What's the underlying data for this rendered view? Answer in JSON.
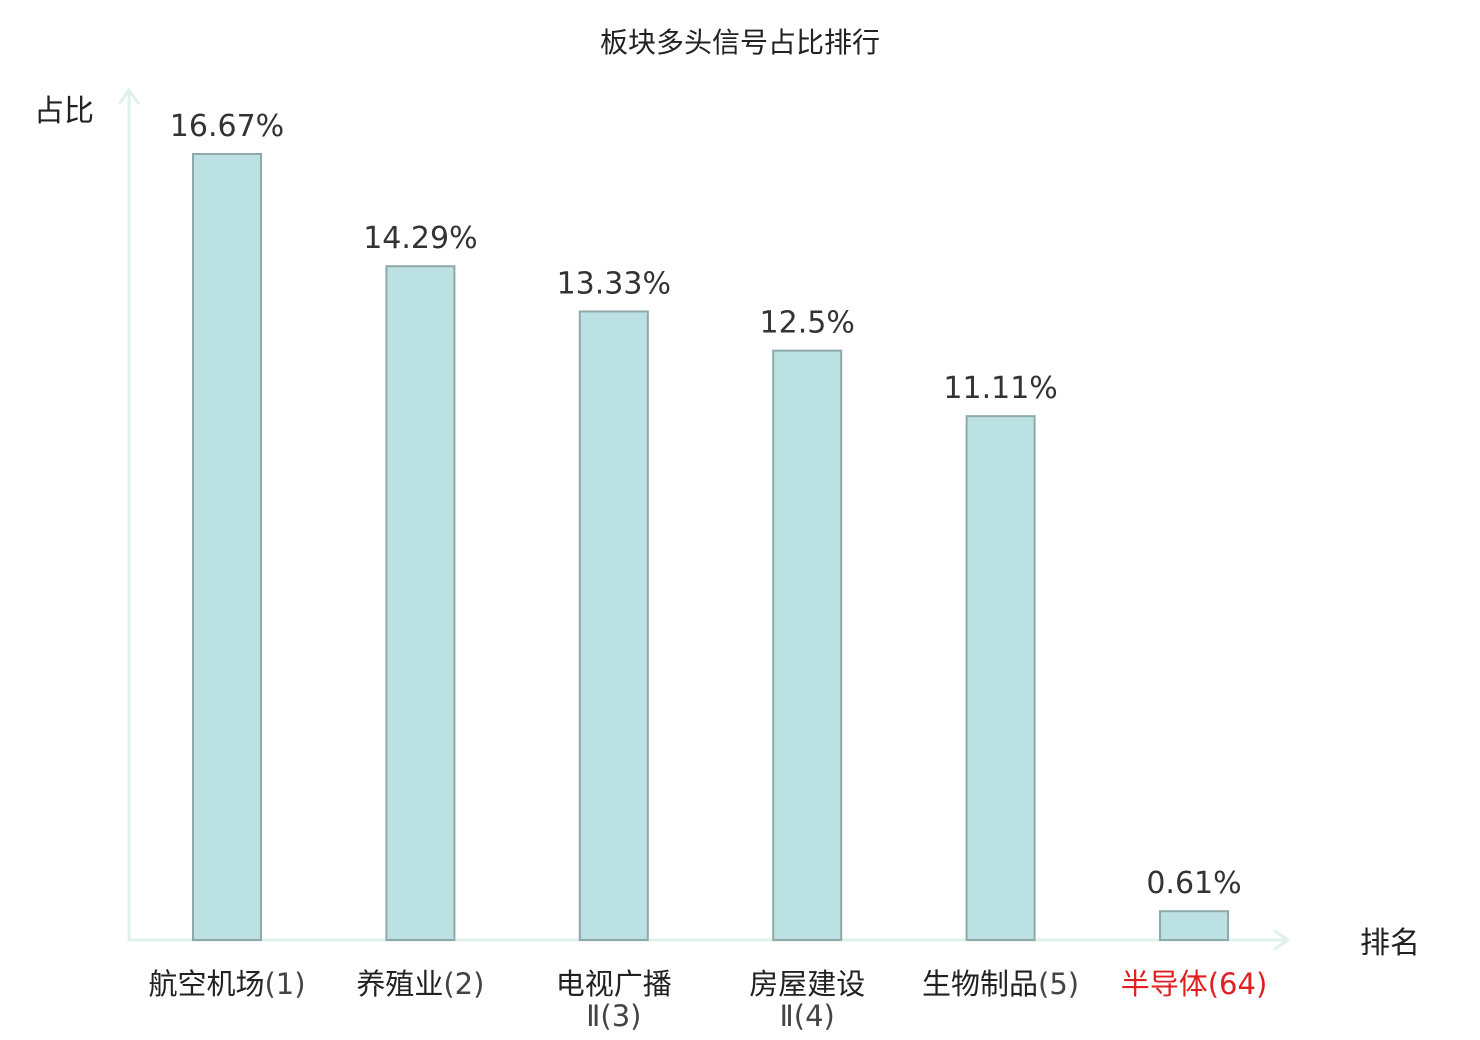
{
  "chart_data": {
    "type": "bar",
    "title": "板块多头信号占比排行",
    "ylabel": "占比",
    "xlabel": "排名",
    "ylim": [
      0,
      17.5
    ],
    "grid": false,
    "categories": [
      {
        "name": [
          "航空机场"
        ],
        "rank": "(1)",
        "highlight": false
      },
      {
        "name": [
          "养殖业"
        ],
        "rank": "(2)",
        "highlight": false
      },
      {
        "name": [
          "电视广播",
          "Ⅱ"
        ],
        "rank": "(3)",
        "highlight": false
      },
      {
        "name": [
          "房屋建设",
          "Ⅱ"
        ],
        "rank": "(4)",
        "highlight": false
      },
      {
        "name": [
          "生物制品"
        ],
        "rank": "(5)",
        "highlight": false
      },
      {
        "name": [
          "半导体"
        ],
        "rank": "(64)",
        "highlight": true
      }
    ],
    "values": [
      16.67,
      14.29,
      13.33,
      12.5,
      11.11,
      0.61
    ],
    "value_labels": [
      "16.67%",
      "14.29%",
      "13.33%",
      "12.5%",
      "11.11%",
      "0.61%"
    ],
    "colors": {
      "bar_fill": "#bce1e3",
      "bar_stroke": "#8fa9aa",
      "axis": "#dff1ee",
      "highlight": "#e02020"
    }
  }
}
